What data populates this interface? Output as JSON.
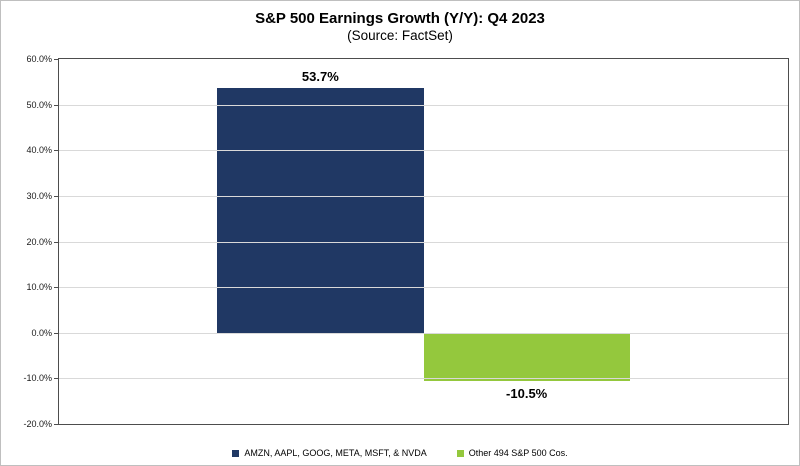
{
  "chart_data": {
    "type": "bar",
    "title": "S&P 500 Earnings Growth (Y/Y): Q4 2023",
    "subtitle": "(Source: FactSet)",
    "categories": [
      "AMZN, AAPL, GOOG, META, MSFT, & NVDA",
      "Other 494 S&P 500 Cos."
    ],
    "values": [
      53.7,
      -10.5
    ],
    "data_labels": [
      "53.7%",
      "-10.5%"
    ],
    "colors": [
      "#203864",
      "#94c83d"
    ],
    "ylim": [
      -20,
      60
    ],
    "ytick_step": 10,
    "ytick_labels": [
      "60.0%",
      "50.0%",
      "40.0%",
      "30.0%",
      "20.0%",
      "10.0%",
      "0.0%",
      "-10.0%",
      "-20.0%"
    ],
    "grid": true,
    "legend_position": "bottom",
    "legend": [
      {
        "label": "AMZN, AAPL, GOOG, META, MSFT, & NVDA",
        "color": "#203864"
      },
      {
        "label": "Other 494 S&P 500 Cos.",
        "color": "#94c83d"
      }
    ]
  }
}
